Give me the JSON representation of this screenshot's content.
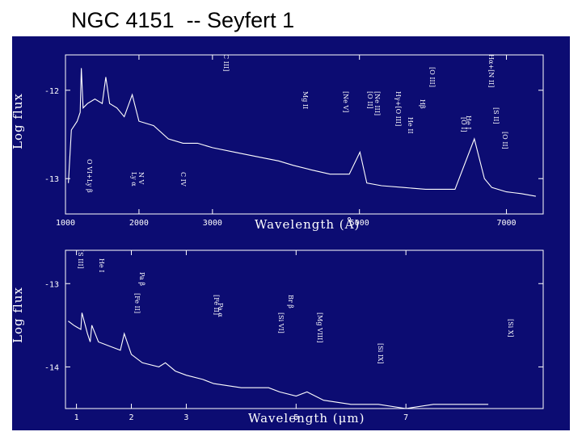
{
  "title": "NGC 4151  -- Seyfert 1",
  "colors": {
    "background": "#0c0c72",
    "foreground": "#ffffff",
    "page": "#ffffff"
  },
  "chart_data": [
    {
      "type": "line",
      "panel": "top",
      "xlabel": "Wavelength (Å)",
      "ylabel": "Log flux",
      "x_ticks": [
        "1000",
        "2000",
        "3000",
        "5000",
        "7000"
      ],
      "x_tick_values": [
        1000,
        2000,
        3000,
        5000,
        7000
      ],
      "y_ticks": [
        "-12",
        "-13"
      ],
      "y_tick_values": [
        -12,
        -13
      ],
      "xlim": [
        1000,
        7500
      ],
      "ylim": [
        -13.4,
        -11.6
      ],
      "series": [
        {
          "x": [
            1040,
            1080,
            1120,
            1160,
            1200,
            1216,
            1240,
            1300,
            1400,
            1500,
            1549,
            1600,
            1700,
            1800,
            1909,
            2000,
            2200,
            2400,
            2600,
            2798,
            3000,
            3300,
            3600,
            3900,
            4100,
            4340,
            4600,
            4861,
            5007,
            5100,
            5300,
            5600,
            5900,
            6300,
            6563,
            6700,
            6800,
            7000,
            7200,
            7400
          ],
          "y": [
            -13.05,
            -12.45,
            -12.4,
            -12.35,
            -12.25,
            -11.75,
            -12.2,
            -12.15,
            -12.1,
            -12.15,
            -11.85,
            -12.15,
            -12.2,
            -12.3,
            -12.05,
            -12.35,
            -12.4,
            -12.55,
            -12.6,
            -12.6,
            -12.65,
            -12.7,
            -12.75,
            -12.8,
            -12.85,
            -12.9,
            -12.95,
            -12.95,
            -12.7,
            -13.05,
            -13.08,
            -13.1,
            -13.12,
            -13.12,
            -12.55,
            -13.0,
            -13.1,
            -13.15,
            -13.17,
            -13.2
          ]
        }
      ],
      "line_labels": [
        "O VI+Ly β",
        "Ly α",
        "N V",
        "C IV",
        "C III]",
        "Mg II",
        "[Ne V]",
        "[O II]",
        "[Ne III]",
        "Hγ+[O III]",
        "He II",
        "Hβ",
        "[O III]",
        "[O I]",
        "He I",
        "Hα+[N II]",
        "[S II]",
        "[O II]"
      ]
    },
    {
      "type": "line",
      "panel": "bottom",
      "xlabel": "Wavelength (μm)",
      "ylabel": "Log flux",
      "x_ticks": [
        "1",
        "2",
        "3",
        "5",
        "7"
      ],
      "x_tick_values": [
        1,
        2,
        3,
        5,
        7
      ],
      "y_ticks": [
        "-13",
        "-14"
      ],
      "y_tick_values": [
        -13,
        -14
      ],
      "xlim": [
        0.8,
        9.5
      ],
      "ylim": [
        -14.5,
        -12.6
      ],
      "series": [
        {
          "x": [
            0.85,
            0.95,
            1.0,
            1.08,
            1.1,
            1.2,
            1.25,
            1.28,
            1.4,
            1.6,
            1.8,
            1.87,
            2.0,
            2.2,
            2.5,
            2.62,
            2.8,
            3.0,
            3.3,
            3.5,
            4.0,
            4.5,
            4.7,
            5.0,
            5.2,
            5.5,
            6.0,
            6.5,
            7.0,
            7.5,
            8.0,
            8.5
          ],
          "y": [
            -13.45,
            -13.5,
            -13.52,
            -13.55,
            -13.35,
            -13.6,
            -13.7,
            -13.5,
            -13.7,
            -13.75,
            -13.8,
            -13.6,
            -13.85,
            -13.95,
            -14.0,
            -13.95,
            -14.05,
            -14.1,
            -14.15,
            -14.2,
            -14.25,
            -14.25,
            -14.3,
            -14.35,
            -14.3,
            -14.4,
            -14.45,
            -14.45,
            -14.5,
            -14.45,
            -14.45,
            -14.45
          ]
        }
      ],
      "line_labels": [
        "[S III]",
        "He I",
        "Pa β",
        "[Fe II]",
        "[Fe II]",
        "Pa α",
        "Br β",
        "[Si VI]",
        "[Mg VIII]",
        "[Si IX]",
        "[Si X]"
      ]
    }
  ]
}
